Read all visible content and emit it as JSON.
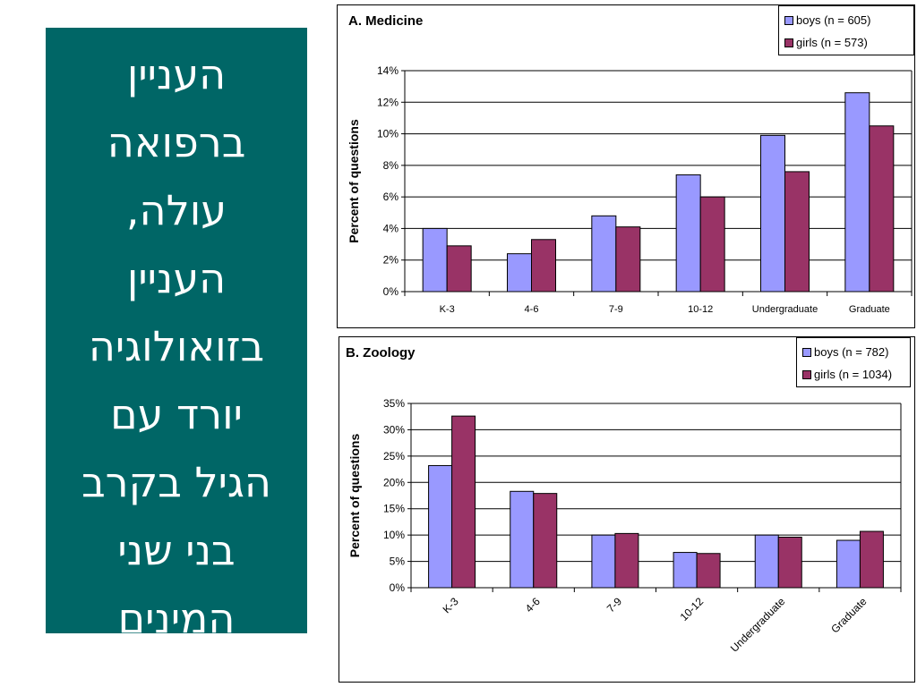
{
  "side_panel": {
    "lines": [
      "העניין",
      "ברפואה",
      "עולה,",
      "העניין",
      "בזואולוגיה",
      "יורד עם",
      "הגיל בקרב",
      "בני שני",
      "המינים"
    ]
  },
  "colors": {
    "boys": "#9999ff",
    "girls": "#993366",
    "panel": "#006666"
  },
  "chart_data": [
    {
      "type": "bar",
      "title": "A. Medicine",
      "xlabel": "",
      "ylabel": "Percent of questions",
      "categories": [
        "K-3",
        "4-6",
        "7-9",
        "10-12",
        "Undergraduate",
        "Graduate"
      ],
      "series": [
        {
          "name": "boys (n = 605)",
          "values": [
            4.0,
            2.4,
            4.8,
            7.4,
            9.9,
            12.6
          ]
        },
        {
          "name": "girls (n = 573)",
          "values": [
            2.9,
            3.3,
            4.1,
            6.0,
            7.6,
            10.5
          ]
        }
      ],
      "ylim": [
        0,
        14
      ],
      "yticks": [
        0,
        2,
        4,
        6,
        8,
        10,
        12,
        14
      ],
      "ytick_labels": [
        "0%",
        "2%",
        "4%",
        "6%",
        "8%",
        "10%",
        "12%",
        "14%"
      ],
      "grid": true,
      "legend": "top-right"
    },
    {
      "type": "bar",
      "title": "B. Zoology",
      "xlabel": "",
      "ylabel": "Percent of questions",
      "categories": [
        "K-3",
        "4-6",
        "7-9",
        "10-12",
        "Undergraduate",
        "Graduate"
      ],
      "series": [
        {
          "name": "boys (n = 782)",
          "values": [
            23.2,
            18.3,
            10.0,
            6.7,
            10.0,
            9.0
          ]
        },
        {
          "name": "girls (n = 1034)",
          "values": [
            32.6,
            17.9,
            10.3,
            6.5,
            9.6,
            10.7
          ]
        }
      ],
      "ylim": [
        0,
        35
      ],
      "yticks": [
        0,
        5,
        10,
        15,
        20,
        25,
        30,
        35
      ],
      "ytick_labels": [
        "0%",
        "5%",
        "10%",
        "15%",
        "20%",
        "25%",
        "30%",
        "35%"
      ],
      "grid": true,
      "legend": "top-right",
      "rotated_xticks": true
    }
  ]
}
